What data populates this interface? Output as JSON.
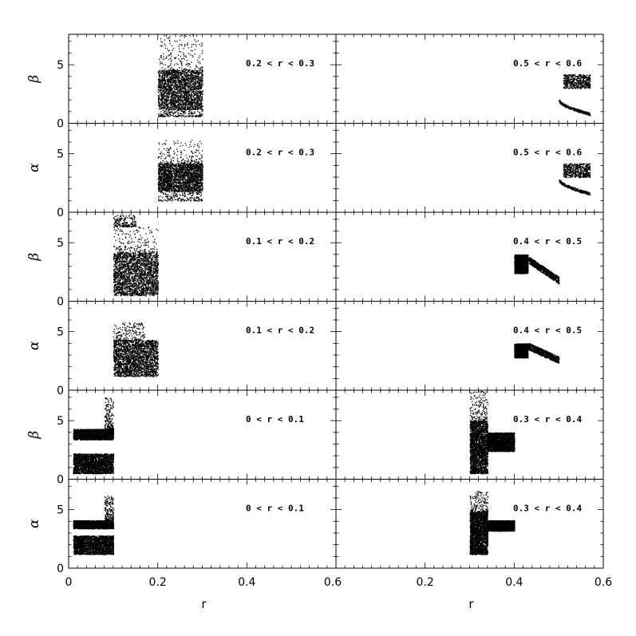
{
  "chart_data": {
    "type": "scatter",
    "grid": false,
    "columns": 2,
    "rows": 6,
    "x_tick_labels_left": [
      "0",
      "0.2",
      "0.4",
      "0.6"
    ],
    "x_tick_labels_right": [
      "0.6",
      "0.2",
      "0.4",
      "0.6"
    ],
    "xlim": [
      0,
      0.6
    ],
    "ylim": [
      0,
      7.6
    ],
    "y_tick_labels": [
      "0",
      "5"
    ],
    "xlabel": "r",
    "panels": [
      {
        "column": 0,
        "row": 0,
        "ylabel": "β",
        "label": "0.2 < r < 0.3",
        "clusters": [
          {
            "x": [
              0.2,
              0.3
            ],
            "y": [
              1.2,
              4.6
            ],
            "density": "dense"
          },
          {
            "x": [
              0.2,
              0.3
            ],
            "y": [
              4.6,
              7.6
            ],
            "density": "sparse"
          },
          {
            "x": [
              0.2,
              0.3
            ],
            "y": [
              0.6,
              1.2
            ],
            "density": "sparse"
          }
        ]
      },
      {
        "column": 0,
        "row": 1,
        "ylabel": "α",
        "label": "0.2 < r < 0.3",
        "clusters": [
          {
            "x": [
              0.2,
              0.3
            ],
            "y": [
              1.8,
              4.2
            ],
            "density": "dense"
          },
          {
            "x": [
              0.2,
              0.3
            ],
            "y": [
              4.2,
              6.2
            ],
            "density": "sparse"
          },
          {
            "x": [
              0.2,
              0.3
            ],
            "y": [
              1.0,
              1.8
            ],
            "density": "sparse"
          }
        ]
      },
      {
        "column": 0,
        "row": 2,
        "ylabel": "β",
        "label": "0.1 < r < 0.2",
        "clusters": [
          {
            "x": [
              0.1,
              0.2
            ],
            "y": [
              0.5,
              4.2
            ],
            "density": "dense"
          },
          {
            "x": [
              0.1,
              0.2
            ],
            "y": [
              4.2,
              6.4
            ],
            "density": "sparse"
          },
          {
            "x": [
              0.1,
              0.15
            ],
            "y": [
              6.4,
              7.4
            ],
            "density": "sparse"
          }
        ]
      },
      {
        "column": 0,
        "row": 3,
        "ylabel": "α",
        "label": "0.1 < r < 0.2",
        "clusters": [
          {
            "x": [
              0.1,
              0.2
            ],
            "y": [
              1.2,
              4.3
            ],
            "density": "dense"
          },
          {
            "x": [
              0.1,
              0.17
            ],
            "y": [
              4.3,
              5.8
            ],
            "density": "sparse"
          }
        ]
      },
      {
        "column": 0,
        "row": 4,
        "ylabel": "β",
        "label": "0 < r < 0.1",
        "clusters": [
          {
            "x": [
              0.01,
              0.1
            ],
            "y": [
              3.4,
              4.3
            ],
            "density": "dense"
          },
          {
            "x": [
              0.01,
              0.1
            ],
            "y": [
              0.5,
              2.2
            ],
            "density": "dense"
          },
          {
            "x": [
              0.08,
              0.1
            ],
            "y": [
              4.3,
              7.0
            ],
            "density": "sparse"
          }
        ]
      },
      {
        "column": 0,
        "row": 5,
        "ylabel": "α",
        "label": "0 < r < 0.1",
        "clusters": [
          {
            "x": [
              0.01,
              0.1
            ],
            "y": [
              3.4,
              4.1
            ],
            "density": "dense"
          },
          {
            "x": [
              0.01,
              0.1
            ],
            "y": [
              1.2,
              2.8
            ],
            "density": "dense"
          },
          {
            "x": [
              0.08,
              0.1
            ],
            "y": [
              4.1,
              6.2
            ],
            "density": "sparse"
          }
        ]
      },
      {
        "column": 1,
        "row": 0,
        "label": "0.5 < r < 0.6",
        "clusters": [
          {
            "x": [
              0.51,
              0.57
            ],
            "y": [
              3.0,
              4.2
            ],
            "density": "medium"
          },
          {
            "x": [
              0.5,
              0.57
            ],
            "y": [
              0.8,
              2.0
            ],
            "density": "curve"
          }
        ]
      },
      {
        "column": 1,
        "row": 1,
        "label": "0.5 < r < 0.6",
        "clusters": [
          {
            "x": [
              0.51,
              0.57
            ],
            "y": [
              3.0,
              4.2
            ],
            "density": "medium"
          },
          {
            "x": [
              0.5,
              0.57
            ],
            "y": [
              1.6,
              2.8
            ],
            "density": "curve"
          }
        ]
      },
      {
        "column": 1,
        "row": 2,
        "label": "0.4 < r < 0.5",
        "clusters": [
          {
            "x": [
              0.4,
              0.43
            ],
            "y": [
              2.4,
              4.0
            ],
            "density": "dense"
          },
          {
            "x": [
              0.43,
              0.5
            ],
            "y": [
              1.8,
              3.6
            ],
            "density": "band"
          }
        ]
      },
      {
        "column": 1,
        "row": 3,
        "label": "0.4 < r < 0.5",
        "clusters": [
          {
            "x": [
              0.4,
              0.43
            ],
            "y": [
              2.8,
              4.0
            ],
            "density": "dense"
          },
          {
            "x": [
              0.43,
              0.5
            ],
            "y": [
              2.6,
              3.8
            ],
            "density": "band"
          }
        ]
      },
      {
        "column": 1,
        "row": 4,
        "label": "0.3 < r < 0.4",
        "clusters": [
          {
            "x": [
              0.3,
              0.34
            ],
            "y": [
              0.5,
              5.0
            ],
            "density": "dense"
          },
          {
            "x": [
              0.34,
              0.4
            ],
            "y": [
              2.4,
              4.0
            ],
            "density": "dense"
          },
          {
            "x": [
              0.3,
              0.34
            ],
            "y": [
              5.0,
              7.8
            ],
            "density": "sparse"
          }
        ]
      },
      {
        "column": 1,
        "row": 5,
        "label": "0.3 < r < 0.4",
        "clusters": [
          {
            "x": [
              0.3,
              0.34
            ],
            "y": [
              1.2,
              4.8
            ],
            "density": "dense"
          },
          {
            "x": [
              0.34,
              0.4
            ],
            "y": [
              3.2,
              4.1
            ],
            "density": "dense"
          },
          {
            "x": [
              0.3,
              0.34
            ],
            "y": [
              4.8,
              6.6
            ],
            "density": "sparse"
          }
        ]
      }
    ]
  }
}
